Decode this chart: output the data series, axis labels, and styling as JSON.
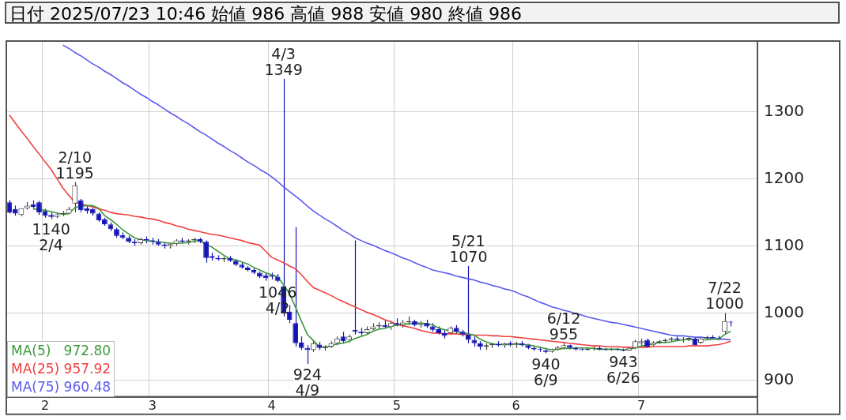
{
  "chart_data": {
    "type": "candlestick",
    "title": "日付 2025/07/23 10:46 始値 986 高値 988 安値 980 終値 986",
    "categories": [
      null,
      null,
      null,
      null,
      null,
      null,
      "2",
      null,
      null,
      null,
      null,
      null,
      null,
      null,
      null,
      null,
      null,
      null,
      null,
      null,
      null,
      null,
      null,
      null,
      "3",
      null,
      null,
      null,
      null,
      null,
      null,
      null,
      null,
      null,
      null,
      null,
      null,
      null,
      null,
      null,
      null,
      null,
      null,
      null,
      "4",
      null,
      null,
      null,
      null,
      null,
      null,
      null,
      null,
      null,
      null,
      null,
      null,
      null,
      null,
      null,
      null,
      null,
      null,
      null,
      null,
      "5",
      null,
      null,
      null,
      null,
      null,
      null,
      null,
      null,
      null,
      null,
      null,
      null,
      null,
      null,
      null,
      null,
      null,
      null,
      null,
      "6",
      null,
      null,
      null,
      null,
      null,
      null,
      null,
      null,
      null,
      null,
      null,
      null,
      null,
      null,
      null,
      null,
      null,
      null,
      null,
      null,
      "7",
      null,
      null,
      null,
      null,
      null,
      null,
      null,
      null,
      null,
      null,
      null,
      null,
      null,
      null,
      null,
      null,
      null,
      null,
      null
    ],
    "colors": [
      "#1414b4",
      "#1414b4",
      "#444444",
      "#444444",
      "#1414b4",
      "#1414b4",
      "#1414b4",
      "#1414b4",
      "#444444",
      "#444444",
      "#444444",
      "#444444",
      "#1414b4",
      "#1414b4",
      "#1414b4",
      "#1414b4",
      "#1414b4",
      "#1414b4",
      "#1414b4",
      "#1414b4",
      "#1414b4",
      "#1414b4",
      "#444444",
      "#1414b4",
      "#1414b4",
      "#1414b4",
      "#1414b4",
      "#444444",
      "#444444",
      "#1414b4",
      "#444444",
      "#444444",
      "#1414b4",
      "#1414b4",
      "#1414b4",
      "#1414b4",
      "#444444",
      "#1414b4",
      "#1414b4",
      "#1414b4",
      "#1414b4",
      "#1414b4",
      "#1414b4",
      "#1414b4",
      "#1414b4",
      "#1414b4",
      "#1414b4",
      "#1414b4",
      "#1414b4",
      "#1414b4",
      "#1414b4",
      "#444444",
      "#1414b4",
      "#444444",
      "#444444",
      "#444444",
      "#1414b4",
      "#444444",
      "#1414b4",
      "#1414b4",
      "#444444",
      "#444444",
      "#444444",
      "#1414b4",
      "#444444",
      "#1414b4",
      "#444444",
      "#444444",
      "#1414b4",
      "#444444",
      "#1414b4",
      "#1414b4",
      "#1414b4",
      "#1414b4",
      "#444444",
      "#1414b4",
      "#1414b4",
      "#1414b4",
      "#1414b4",
      "#1414b4",
      "#444444",
      "#444444",
      "#1414b4",
      "#444444",
      "#1414b4",
      "#444444",
      "#1414b4",
      "#1414b4",
      "#1414b4",
      "#1414b4",
      "#1414b4",
      "#444444",
      "#444444",
      "#444444",
      "#1414b4",
      "#1414b4",
      "#1414b4",
      "#444444",
      "#444444",
      "#1414b4",
      "#1414b4",
      "#444444",
      "#1414b4",
      "#1414b4",
      "#444444",
      "#444444",
      "#444444",
      "#1414b4",
      "#444444",
      "#444444",
      "#444444",
      "#444444",
      "#1414b4",
      "#444444",
      "#444444",
      "#1414b4",
      "#444444",
      "#444444",
      "#1414b4",
      "#1414b4",
      "#444444",
      "#1414b4",
      null,
      null,
      null,
      null
    ],
    "ohlc": [
      [
        1165,
        1168,
        1148,
        1150
      ],
      [
        1155,
        1160,
        1145,
        1148
      ],
      [
        1146,
        1156,
        1144,
        1156
      ],
      [
        1156,
        1165,
        1154,
        1160
      ],
      [
        1162,
        1168,
        1155,
        1158
      ],
      [
        1165,
        1167,
        1146,
        1150
      ],
      [
        1152,
        1155,
        1142,
        1145
      ],
      [
        1146,
        1150,
        1140,
        1143
      ],
      [
        1143,
        1150,
        1141,
        1147
      ],
      [
        1147,
        1152,
        1144,
        1149
      ],
      [
        1148,
        1158,
        1147,
        1155
      ],
      [
        1163,
        1195,
        1150,
        1190
      ],
      [
        1168,
        1170,
        1150,
        1153
      ],
      [
        1156,
        1160,
        1148,
        1152
      ],
      [
        1155,
        1158,
        1145,
        1148
      ],
      [
        1148,
        1150,
        1136,
        1138
      ],
      [
        1140,
        1142,
        1130,
        1132
      ],
      [
        1132,
        1135,
        1122,
        1125
      ],
      [
        1125,
        1127,
        1112,
        1115
      ],
      [
        1116,
        1120,
        1110,
        1112
      ],
      [
        1112,
        1115,
        1104,
        1106
      ],
      [
        1106,
        1110,
        1100,
        1104
      ],
      [
        1104,
        1112,
        1102,
        1110
      ],
      [
        1110,
        1114,
        1104,
        1108
      ],
      [
        1108,
        1112,
        1102,
        1106
      ],
      [
        1106,
        1110,
        1100,
        1102
      ],
      [
        1102,
        1106,
        1096,
        1100
      ],
      [
        1100,
        1104,
        1096,
        1103
      ],
      [
        1103,
        1110,
        1100,
        1108
      ],
      [
        1108,
        1112,
        1104,
        1106
      ],
      [
        1106,
        1110,
        1102,
        1108
      ],
      [
        1108,
        1112,
        1104,
        1110
      ],
      [
        1110,
        1112,
        1104,
        1106
      ],
      [
        1106,
        1108,
        1075,
        1082
      ],
      [
        1085,
        1090,
        1078,
        1082
      ],
      [
        1082,
        1086,
        1078,
        1080
      ],
      [
        1080,
        1084,
        1076,
        1082
      ],
      [
        1082,
        1085,
        1076,
        1078
      ],
      [
        1078,
        1080,
        1070,
        1072
      ],
      [
        1072,
        1075,
        1066,
        1068
      ],
      [
        1068,
        1070,
        1062,
        1064
      ],
      [
        1064,
        1068,
        1058,
        1060
      ],
      [
        1060,
        1062,
        1052,
        1054
      ],
      [
        1056,
        1060,
        1048,
        1052
      ],
      [
        1056,
        1060,
        1050,
        1054
      ],
      [
        1054,
        1058,
        1046,
        1048
      ],
      [
        1040,
        1349,
        995,
        1000
      ],
      [
        1002,
        1012,
        985,
        990
      ],
      [
        985,
        1128,
        950,
        955
      ],
      [
        956,
        965,
        945,
        948
      ],
      [
        948,
        952,
        924,
        945
      ],
      [
        945,
        960,
        942,
        955
      ],
      [
        953,
        957,
        945,
        948
      ],
      [
        948,
        952,
        944,
        950
      ],
      [
        950,
        958,
        948,
        955
      ],
      [
        955,
        965,
        952,
        962
      ],
      [
        965,
        972,
        955,
        958
      ],
      [
        960,
        968,
        956,
        965
      ],
      [
        975,
        1108,
        968,
        972
      ],
      [
        972,
        978,
        966,
        970
      ],
      [
        970,
        980,
        968,
        976
      ],
      [
        976,
        985,
        974,
        980
      ],
      [
        980,
        986,
        976,
        982
      ],
      [
        982,
        990,
        978,
        979
      ],
      [
        979,
        988,
        975,
        985
      ],
      [
        985,
        992,
        980,
        982
      ],
      [
        982,
        990,
        978,
        986
      ],
      [
        986,
        995,
        982,
        988
      ],
      [
        988,
        990,
        980,
        982
      ],
      [
        982,
        988,
        978,
        985
      ],
      [
        985,
        990,
        978,
        980
      ],
      [
        980,
        985,
        972,
        975
      ],
      [
        976,
        980,
        968,
        970
      ],
      [
        970,
        976,
        962,
        966
      ],
      [
        970,
        980,
        968,
        978
      ],
      [
        978,
        982,
        970,
        972
      ],
      [
        972,
        975,
        965,
        968
      ],
      [
        968,
        1070,
        955,
        960
      ],
      [
        960,
        965,
        950,
        955
      ],
      [
        955,
        958,
        945,
        950
      ],
      [
        950,
        955,
        945,
        952
      ],
      [
        952,
        956,
        948,
        954
      ],
      [
        954,
        958,
        950,
        952
      ],
      [
        952,
        956,
        948,
        955
      ],
      [
        955,
        958,
        950,
        953
      ],
      [
        953,
        957,
        948,
        955
      ],
      [
        955,
        958,
        950,
        952
      ],
      [
        952,
        954,
        946,
        948
      ],
      [
        948,
        951,
        944,
        946
      ],
      [
        946,
        950,
        942,
        945
      ],
      [
        944,
        948,
        940,
        942
      ],
      [
        942,
        947,
        941,
        946
      ],
      [
        946,
        951,
        944,
        949
      ],
      [
        948,
        955,
        946,
        952
      ],
      [
        952,
        953,
        946,
        948
      ],
      [
        948,
        950,
        944,
        946
      ],
      [
        946,
        948,
        944,
        945
      ],
      [
        945,
        948,
        944,
        947
      ],
      [
        947,
        950,
        944,
        948
      ],
      [
        948,
        950,
        944,
        946
      ],
      [
        946,
        948,
        944,
        945
      ],
      [
        945,
        948,
        944,
        946
      ],
      [
        946,
        948,
        944,
        945
      ],
      [
        945,
        947,
        943,
        944
      ],
      [
        944,
        950,
        944,
        948
      ],
      [
        948,
        960,
        946,
        958
      ],
      [
        955,
        962,
        952,
        958
      ],
      [
        960,
        962,
        948,
        950
      ],
      [
        952,
        958,
        950,
        956
      ],
      [
        956,
        960,
        954,
        958
      ],
      [
        958,
        962,
        955,
        960
      ],
      [
        960,
        964,
        957,
        962
      ],
      [
        962,
        965,
        958,
        960
      ],
      [
        960,
        964,
        956,
        961
      ],
      [
        961,
        965,
        958,
        963
      ],
      [
        962,
        964,
        950,
        952
      ],
      [
        956,
        964,
        954,
        962
      ],
      [
        962,
        966,
        960,
        964
      ],
      [
        964,
        967,
        961,
        963
      ],
      [
        963,
        966,
        960,
        962
      ],
      [
        972,
        1000,
        968,
        988
      ],
      [
        986,
        988,
        980,
        986
      ],
      null,
      null,
      null,
      null
    ],
    "series": [
      {
        "type": "line",
        "name": "MA(5)   972.80",
        "color": "#3c9a3c",
        "values": [
          null,
          null,
          null,
          null,
          1155,
          1154,
          1153,
          1151,
          1149,
          1147,
          1148,
          1157,
          1159,
          1160,
          1160,
          1156,
          1145,
          1139,
          1132,
          1124,
          1118,
          1112,
          1109,
          1108,
          1107,
          1106,
          1105,
          1104,
          1104,
          1104,
          1105,
          1107,
          1108,
          1102,
          1098,
          1092,
          1086,
          1081,
          1079,
          1076,
          1073,
          1068,
          1064,
          1060,
          1057,
          1054,
          1042,
          1029,
          1009,
          988,
          968,
          959,
          950,
          949,
          951,
          954,
          955,
          958,
          962,
          965,
          968,
          973,
          976,
          977,
          980,
          982,
          983,
          984,
          985,
          985,
          984,
          982,
          978,
          975,
          974,
          972,
          971,
          969,
          967,
          961,
          957,
          954,
          953,
          953,
          953,
          954,
          953,
          953,
          951,
          949,
          947,
          945,
          946,
          947,
          947,
          948,
          948,
          948,
          947,
          946,
          946,
          946,
          946,
          945,
          946,
          948,
          951,
          952,
          954,
          956,
          956,
          957,
          959,
          960,
          961,
          960,
          960,
          960,
          961,
          961,
          968,
          973,
          null,
          null,
          null,
          null
        ]
      },
      {
        "type": "line",
        "name": "MA(25) 957.92",
        "color": "#f04040",
        "values": [
          1295,
          1283,
          1271,
          1260,
          1248,
          1237,
          1225,
          1214,
          1200,
          1186,
          1175,
          1165,
          1163,
          1160,
          1158,
          1155,
          1153,
          1150,
          1148,
          1147,
          1146,
          1144,
          1143,
          1141,
          1140,
          1138,
          1135,
          1133,
          1130,
          1128,
          1125,
          1123,
          1121,
          1119,
          1117,
          1116,
          1114,
          1112,
          1110,
          1108,
          1105,
          1103,
          1101,
          1092,
          1083,
          1079,
          1075,
          1070,
          1066,
          1057,
          1047,
          1038,
          1034,
          1030,
          1026,
          1021,
          1017,
          1013,
          1009,
          1005,
          1001,
          998,
          994,
          990,
          987,
          983,
          981,
          979,
          977,
          974,
          972,
          970,
          970,
          969,
          969,
          969,
          968,
          968,
          967,
          967,
          967,
          966,
          966,
          965,
          965,
          964,
          963,
          962,
          961,
          960,
          959,
          958,
          957,
          956,
          955,
          954,
          953,
          952,
          951,
          951,
          950,
          950,
          950,
          949,
          949,
          949,
          949,
          949,
          950,
          950,
          950,
          950,
          950,
          950,
          951,
          951,
          951,
          951,
          952,
          953,
          955,
          958,
          null,
          null,
          null,
          null
        ]
      },
      {
        "type": "line",
        "name": "MA(75) 960.48",
        "color": "#5a5af0",
        "values": [
          null,
          null,
          null,
          null,
          null,
          null,
          null,
          null,
          null,
          1399,
          1394,
          1388,
          1383,
          1377,
          1371,
          1366,
          1360,
          1355,
          1349,
          1343,
          1338,
          1332,
          1326,
          1321,
          1315,
          1310,
          1304,
          1298,
          1293,
          1287,
          1282,
          1276,
          1270,
          1265,
          1259,
          1253,
          1248,
          1242,
          1237,
          1231,
          1225,
          1220,
          1214,
          1209,
          1203,
          1196,
          1188,
          1181,
          1174,
          1167,
          1159,
          1152,
          1146,
          1140,
          1135,
          1129,
          1123,
          1118,
          1112,
          1108,
          1104,
          1101,
          1097,
          1093,
          1090,
          1086,
          1082,
          1079,
          1075,
          1071,
          1068,
          1064,
          1062,
          1060,
          1058,
          1055,
          1053,
          1051,
          1049,
          1046,
          1044,
          1041,
          1039,
          1036,
          1034,
          1031,
          1027,
          1024,
          1020,
          1016,
          1013,
          1009,
          1007,
          1004,
          1002,
          999,
          997,
          994,
          992,
          990,
          988,
          986,
          985,
          983,
          981,
          979,
          977,
          975,
          973,
          971,
          969,
          967,
          966,
          966,
          965,
          964,
          964,
          963,
          962,
          961,
          961,
          960,
          null,
          null,
          null,
          null
        ]
      }
    ],
    "ylim": [
      875,
      1405
    ],
    "yticks": [
      900,
      1000,
      1100,
      1200,
      1300
    ],
    "grid": true,
    "legend": "bottom left",
    "marker": "none",
    "line_style": "solid",
    "annotations": [
      {
        "text": "1140\n2/4",
        "y": 1140
      },
      {
        "text": "2/10\n1195",
        "y": 1195
      },
      {
        "text": "4/3\n1349",
        "y": 1349
      },
      {
        "text": "1046\n4/2",
        "y": 1046
      },
      {
        "text": "924\n4/9",
        "y": 924
      },
      {
        "text": "5/21\n1070",
        "y": 1070
      },
      {
        "text": "6/12\n955",
        "y": 955
      },
      {
        "text": "940\n6/9",
        "y": 940
      },
      {
        "text": "943\n6/26",
        "y": 943
      },
      {
        "text": "7/22\n1000",
        "y": 1000
      }
    ]
  }
}
